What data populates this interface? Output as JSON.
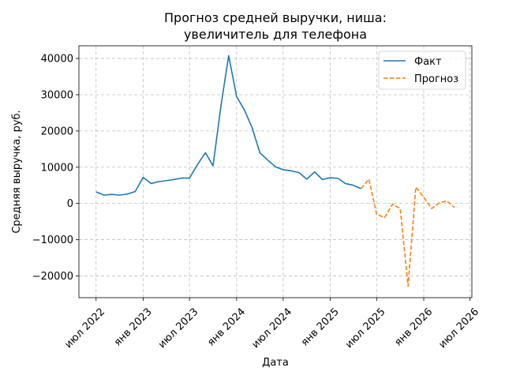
{
  "chart_data": {
    "type": "line",
    "title_lines": [
      "Прогноз средней выручки, ниша:",
      "увеличитель для телефона"
    ],
    "xlabel": "Дата",
    "ylabel": "Средняя выручка, руб.",
    "grid": true,
    "legend_position": "top-right",
    "x_ticks": [
      {
        "date": "2022-07-01",
        "label": "июл 2022"
      },
      {
        "date": "2023-01-01",
        "label": "янв 2023"
      },
      {
        "date": "2023-07-01",
        "label": "июл 2023"
      },
      {
        "date": "2024-01-01",
        "label": "янв 2024"
      },
      {
        "date": "2024-07-01",
        "label": "июл 2024"
      },
      {
        "date": "2025-01-01",
        "label": "янв 2025"
      },
      {
        "date": "2025-07-01",
        "label": "июл 2025"
      },
      {
        "date": "2026-01-01",
        "label": "янв 2026"
      },
      {
        "date": "2026-07-01",
        "label": "июл 2026"
      }
    ],
    "y_ticks": [
      {
        "value": -20000,
        "label": "−20000"
      },
      {
        "value": -10000,
        "label": "−10000"
      },
      {
        "value": 0,
        "label": "0"
      },
      {
        "value": 10000,
        "label": "10000"
      },
      {
        "value": 20000,
        "label": "20000"
      },
      {
        "value": 30000,
        "label": "30000"
      },
      {
        "value": 40000,
        "label": "40000"
      }
    ],
    "xlim": [
      "2022-04-25",
      "2026-07-08"
    ],
    "ylim": [
      -26000,
      43500
    ],
    "series": [
      {
        "name": "Факт",
        "color": "#1f77b4",
        "style": "solid",
        "points": [
          [
            "2022-07-01",
            3200
          ],
          [
            "2022-08-01",
            2300
          ],
          [
            "2022-09-01",
            2500
          ],
          [
            "2022-10-01",
            2300
          ],
          [
            "2022-11-01",
            2600
          ],
          [
            "2022-12-01",
            3300
          ],
          [
            "2023-01-01",
            7200
          ],
          [
            "2023-02-01",
            5500
          ],
          [
            "2023-03-01",
            6000
          ],
          [
            "2023-04-01",
            6300
          ],
          [
            "2023-05-01",
            6600
          ],
          [
            "2023-06-01",
            7000
          ],
          [
            "2023-07-01",
            7000
          ],
          [
            "2023-08-01",
            10700
          ],
          [
            "2023-09-01",
            14000
          ],
          [
            "2023-10-01",
            10400
          ],
          [
            "2023-11-01",
            27000
          ],
          [
            "2023-12-01",
            40800
          ],
          [
            "2024-01-01",
            29500
          ],
          [
            "2024-02-01",
            25700
          ],
          [
            "2024-03-01",
            21000
          ],
          [
            "2024-04-01",
            14000
          ],
          [
            "2024-05-01",
            12000
          ],
          [
            "2024-06-01",
            10100
          ],
          [
            "2024-07-01",
            9300
          ],
          [
            "2024-08-01",
            9000
          ],
          [
            "2024-09-01",
            8500
          ],
          [
            "2024-10-01",
            6700
          ],
          [
            "2024-11-01",
            8700
          ],
          [
            "2024-12-01",
            6600
          ],
          [
            "2025-01-01",
            7100
          ],
          [
            "2025-02-01",
            6900
          ],
          [
            "2025-03-01",
            5500
          ],
          [
            "2025-04-01",
            5000
          ],
          [
            "2025-05-01",
            4100
          ]
        ]
      },
      {
        "name": "Прогноз",
        "color": "#ff7f0e",
        "style": "dashed",
        "points": [
          [
            "2025-05-01",
            4100
          ],
          [
            "2025-06-01",
            6700
          ],
          [
            "2025-07-01",
            -3000
          ],
          [
            "2025-08-01",
            -3900
          ],
          [
            "2025-09-01",
            -200
          ],
          [
            "2025-10-01",
            -1400
          ],
          [
            "2025-11-01",
            -22800
          ],
          [
            "2025-12-01",
            4500
          ],
          [
            "2026-01-01",
            1700
          ],
          [
            "2026-02-01",
            -1400
          ],
          [
            "2026-03-01",
            100
          ],
          [
            "2026-04-01",
            700
          ],
          [
            "2026-05-01",
            -1100
          ]
        ]
      }
    ]
  }
}
